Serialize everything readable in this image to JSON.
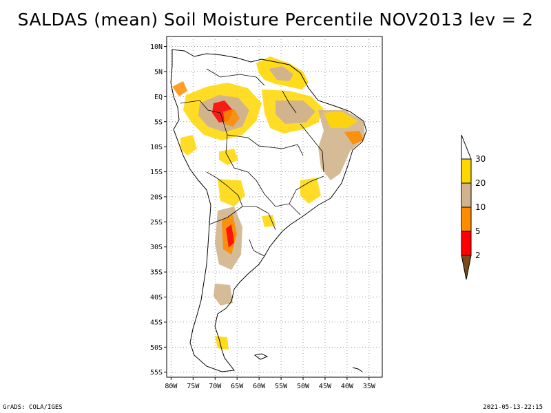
{
  "title": "SALDAS (mean) Soil Moisture Percentile NOV2013 lev = 2",
  "footer": {
    "left": "GrADS: COLA/IGES",
    "right": "2021-05-13-22:15"
  },
  "axes": {
    "lat_labels": [
      "10N",
      "5N",
      "EQ",
      "5S",
      "10S",
      "15S",
      "20S",
      "25S",
      "30S",
      "35S",
      "40S",
      "45S",
      "50S",
      "55S"
    ],
    "lat_values": [
      10,
      5,
      0,
      -5,
      -10,
      -15,
      -20,
      -25,
      -30,
      -35,
      -40,
      -45,
      -50,
      -55
    ],
    "lon_labels": [
      "80W",
      "75W",
      "70W",
      "65W",
      "60W",
      "55W",
      "50W",
      "45W",
      "40W",
      "35W"
    ],
    "lon_values": [
      -80,
      -75,
      -70,
      -65,
      -60,
      -55,
      -50,
      -45,
      -40,
      -35
    ],
    "lon_range": [
      -81,
      -32
    ],
    "lat_range": [
      -56,
      12
    ]
  },
  "colorbar": {
    "levels": [
      "2",
      "5",
      "10",
      "20",
      "30"
    ],
    "colors": [
      "#7a4a1a",
      "#ff0000",
      "#ff8c00",
      "#d2b48c",
      "#ffd700"
    ]
  },
  "chart_data": {
    "type": "heatmap",
    "variable": "Soil Moisture Percentile",
    "period": "NOV2013",
    "level": 2
  }
}
